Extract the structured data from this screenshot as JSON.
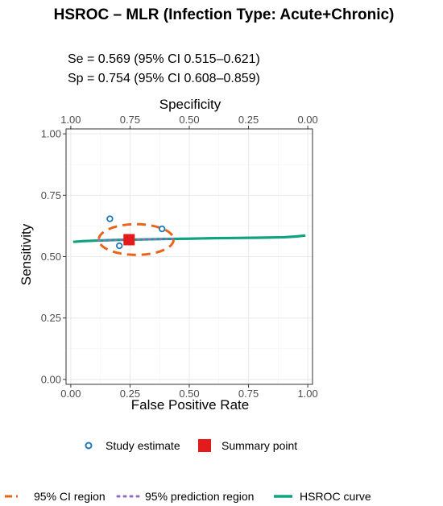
{
  "chart_data": {
    "type": "scatter",
    "title": "HSROC – MLR (Infection Type: Acute+Chronic)",
    "stats": {
      "se": "Se = 0.569 (95% CI 0.515–0.621)",
      "sp": "Sp = 0.754 (95% CI 0.608–0.859)"
    },
    "xlabel": "False Positive Rate",
    "ylabel": "Sensitivity",
    "x2label": "Specificity",
    "xlim": [
      0,
      1
    ],
    "ylim": [
      0,
      1
    ],
    "x_ticks": [
      0,
      0.25,
      0.5,
      0.75,
      1
    ],
    "x_tick_labels": [
      "0.00",
      "0.25",
      "0.50",
      "0.75",
      "1.00"
    ],
    "y_ticks": [
      0,
      0.25,
      0.5,
      0.75,
      1
    ],
    "y_tick_labels": [
      "0.00",
      "0.25",
      "0.50",
      "0.75",
      "1.00"
    ],
    "x2_tick_labels": [
      "1.00",
      "0.75",
      "0.50",
      "0.25",
      "0.00"
    ],
    "grid": true,
    "legend_position": "bottom",
    "legend": {
      "study": "Study estimate",
      "summary": "Summary point",
      "ci": "95% CI region",
      "pred": "95% prediction region",
      "hsroc": "HSROC curve"
    },
    "series": [
      {
        "name": "Study estimate",
        "kind": "points",
        "points": [
          {
            "x": 0.165,
            "y": 0.654
          },
          {
            "x": 0.385,
            "y": 0.613
          },
          {
            "x": 0.205,
            "y": 0.544
          }
        ]
      },
      {
        "name": "Summary point",
        "kind": "point",
        "x": 0.246,
        "y": 0.569
      },
      {
        "name": "95% CI region",
        "kind": "ellipse",
        "center": {
          "x": 0.246,
          "y": 0.569
        },
        "x_range": [
          0.118,
          0.434
        ],
        "y_range": [
          0.507,
          0.632
        ]
      },
      {
        "name": "95% prediction region",
        "kind": "line",
        "x": [
          0.115,
          0.44
        ],
        "y": [
          0.566,
          0.573
        ]
      },
      {
        "name": "HSROC curve",
        "kind": "line",
        "x": [
          0.01,
          0.05,
          0.1,
          0.2,
          0.3,
          0.4,
          0.5,
          0.6,
          0.7,
          0.8,
          0.9,
          0.95,
          0.99
        ],
        "y": [
          0.56,
          0.563,
          0.565,
          0.568,
          0.57,
          0.572,
          0.573,
          0.575,
          0.576,
          0.577,
          0.579,
          0.582,
          0.586
        ]
      }
    ],
    "colors": {
      "study": "#1f77b4",
      "summary": "#e41a1c",
      "ci": "#e8641a",
      "pred": "#8e6cc7",
      "hsroc": "#11a37f",
      "grid": "#ebebeb",
      "axis": "#333333"
    }
  }
}
